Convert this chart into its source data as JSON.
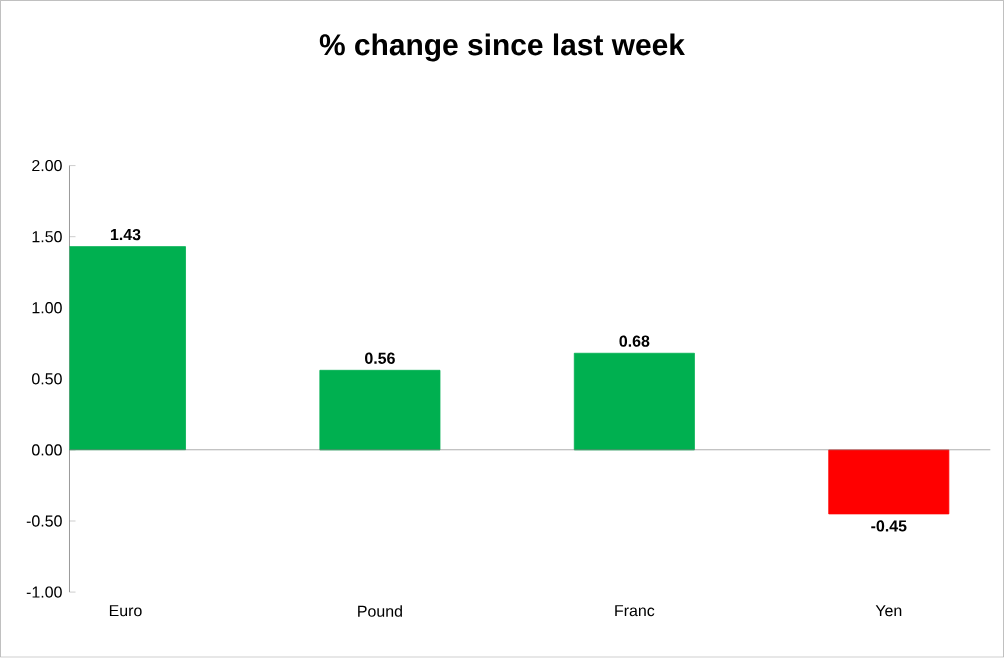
{
  "chart_data": {
    "type": "bar",
    "title": "% change since last week",
    "categories": [
      "Euro",
      "Pound",
      "Franc",
      "Yen"
    ],
    "values": [
      1.43,
      0.56,
      0.68,
      -0.45
    ],
    "colors": [
      "#00b050",
      "#00b050",
      "#00b050",
      "#ff0000"
    ],
    "ylim": [
      -1,
      2
    ],
    "yticks": [
      {
        "value": -1,
        "label": "-1.00"
      },
      {
        "value": -0.5,
        "label": "-0.50"
      },
      {
        "value": 0,
        "label": "0.00"
      },
      {
        "value": 0.5,
        "label": "0.50"
      },
      {
        "value": 1,
        "label": "1.00"
      },
      {
        "value": 1.5,
        "label": "1.50"
      },
      {
        "value": 2,
        "label": "2.00"
      }
    ],
    "value_labels": [
      "1.43",
      "0.56",
      "0.68",
      "-0.45"
    ]
  }
}
